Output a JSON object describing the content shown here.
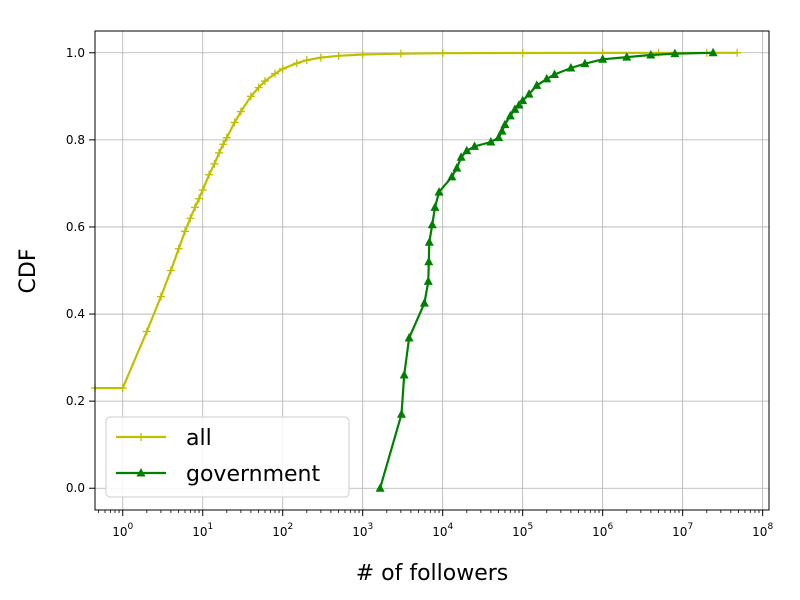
{
  "chart_data": {
    "type": "line",
    "xlabel": "# of followers",
    "ylabel": "CDF",
    "xscale": "log",
    "xlim": [
      0.45,
      120000000
    ],
    "ylim": [
      -0.05,
      1.05
    ],
    "x_ticks": [
      {
        "value": 1,
        "base": "10",
        "exp": "0"
      },
      {
        "value": 10,
        "base": "10",
        "exp": "1"
      },
      {
        "value": 100,
        "base": "10",
        "exp": "2"
      },
      {
        "value": 1000,
        "base": "10",
        "exp": "3"
      },
      {
        "value": 10000,
        "base": "10",
        "exp": "4"
      },
      {
        "value": 100000,
        "base": "10",
        "exp": "5"
      },
      {
        "value": 1000000,
        "base": "10",
        "exp": "6"
      },
      {
        "value": 10000000,
        "base": "10",
        "exp": "7"
      },
      {
        "value": 100000000,
        "base": "10",
        "exp": "8"
      }
    ],
    "y_ticks": [
      "0.0",
      "0.2",
      "0.4",
      "0.6",
      "0.8",
      "1.0"
    ],
    "grid": true,
    "legend_position": "lower-left",
    "series": [
      {
        "name": "all",
        "color": "#bfbf00",
        "marker": "plus",
        "points": [
          [
            0.45,
            0.23
          ],
          [
            1,
            0.23
          ],
          [
            2,
            0.36
          ],
          [
            3,
            0.44
          ],
          [
            4,
            0.5
          ],
          [
            5,
            0.55
          ],
          [
            6,
            0.59
          ],
          [
            7,
            0.62
          ],
          [
            8,
            0.645
          ],
          [
            9,
            0.665
          ],
          [
            10,
            0.685
          ],
          [
            12,
            0.72
          ],
          [
            14,
            0.745
          ],
          [
            16,
            0.77
          ],
          [
            18,
            0.79
          ],
          [
            20,
            0.805
          ],
          [
            25,
            0.84
          ],
          [
            30,
            0.865
          ],
          [
            40,
            0.9
          ],
          [
            50,
            0.92
          ],
          [
            60,
            0.935
          ],
          [
            80,
            0.952
          ],
          [
            100,
            0.963
          ],
          [
            150,
            0.976
          ],
          [
            200,
            0.983
          ],
          [
            300,
            0.989
          ],
          [
            500,
            0.993
          ],
          [
            1000,
            0.996
          ],
          [
            3000,
            0.998
          ],
          [
            10000,
            0.999
          ],
          [
            100000,
            0.9995
          ],
          [
            1000000,
            0.9998
          ],
          [
            5000000,
            1.0
          ],
          [
            20000000,
            1.0
          ],
          [
            48000000,
            1.0
          ]
        ]
      },
      {
        "name": "government",
        "color": "#008000",
        "marker": "triangle",
        "points": [
          [
            1650,
            0.0
          ],
          [
            3050,
            0.17
          ],
          [
            3300,
            0.26
          ],
          [
            3800,
            0.345
          ],
          [
            5900,
            0.425
          ],
          [
            6600,
            0.475
          ],
          [
            6700,
            0.52
          ],
          [
            6800,
            0.565
          ],
          [
            7400,
            0.605
          ],
          [
            8000,
            0.645
          ],
          [
            9000,
            0.68
          ],
          [
            13000,
            0.715
          ],
          [
            15000,
            0.735
          ],
          [
            17000,
            0.76
          ],
          [
            20000,
            0.775
          ],
          [
            25000,
            0.785
          ],
          [
            40000,
            0.795
          ],
          [
            50000,
            0.805
          ],
          [
            55000,
            0.82
          ],
          [
            60000,
            0.835
          ],
          [
            70000,
            0.855
          ],
          [
            80000,
            0.87
          ],
          [
            90000,
            0.88
          ],
          [
            100000,
            0.89
          ],
          [
            120000,
            0.905
          ],
          [
            150000,
            0.925
          ],
          [
            200000,
            0.94
          ],
          [
            250000,
            0.95
          ],
          [
            400000,
            0.965
          ],
          [
            600000,
            0.975
          ],
          [
            1000000,
            0.985
          ],
          [
            2000000,
            0.99
          ],
          [
            4000000,
            0.995
          ],
          [
            8000000,
            0.998
          ],
          [
            24000000,
            1.0
          ]
        ]
      }
    ]
  }
}
